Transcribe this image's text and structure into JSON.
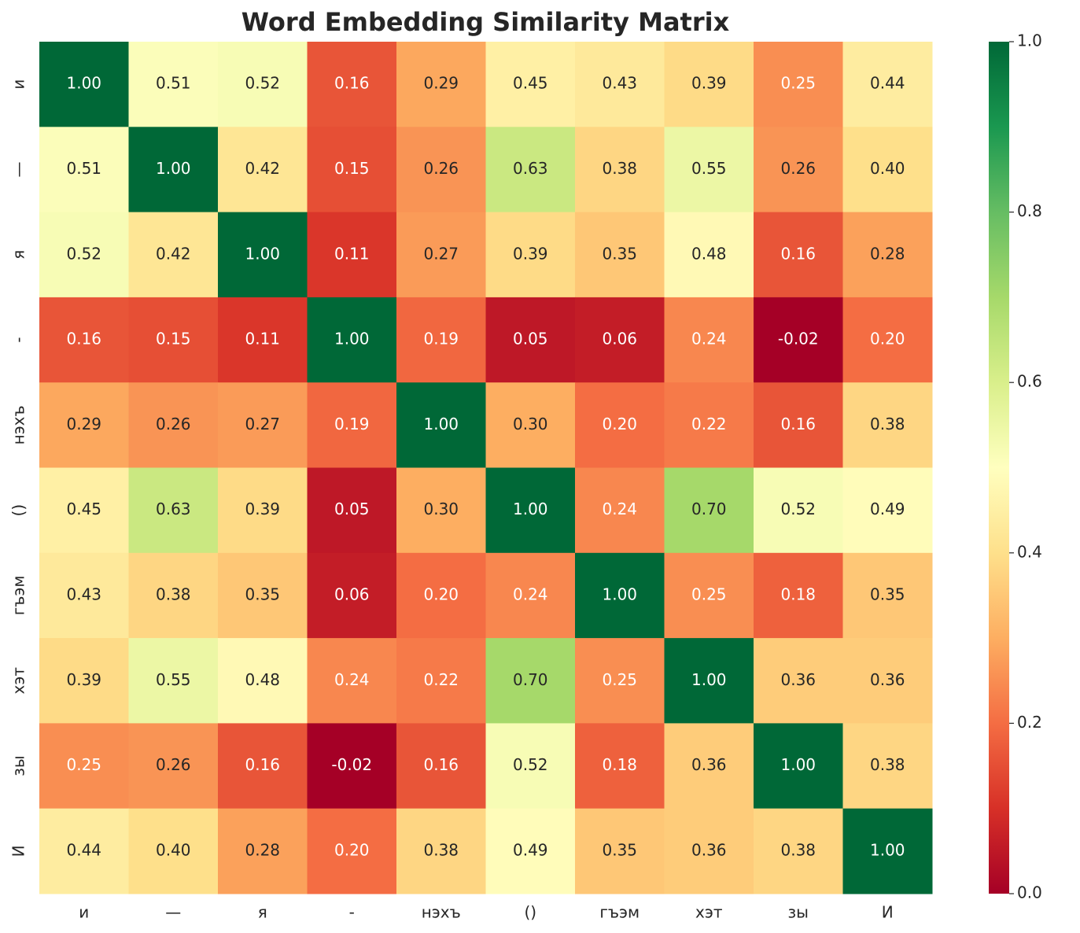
{
  "chart_data": {
    "type": "heatmap",
    "title": "Word Embedding Similarity Matrix",
    "x_categories": [
      "и",
      "—",
      "я",
      "-",
      "нэхъ",
      "()",
      "гъэм",
      "хэт",
      "зы",
      "И"
    ],
    "y_categories": [
      "и",
      "—",
      "я",
      "-",
      "нэхъ",
      "()",
      "гъэм",
      "хэт",
      "зы",
      "И"
    ],
    "values": [
      [
        1,
        0.51,
        0.52,
        0.16,
        0.29,
        0.45,
        0.43,
        0.39,
        0.25,
        0.44
      ],
      [
        0.51,
        1,
        0.42,
        0.15,
        0.26,
        0.63,
        0.38,
        0.55,
        0.26,
        0.4
      ],
      [
        0.52,
        0.42,
        1,
        0.11,
        0.27,
        0.39,
        0.35,
        0.48,
        0.16,
        0.28
      ],
      [
        0.16,
        0.15,
        0.11,
        1,
        0.19,
        0.05,
        0.06,
        0.24,
        -0.02,
        0.2
      ],
      [
        0.29,
        0.26,
        0.27,
        0.19,
        1,
        0.3,
        0.2,
        0.22,
        0.16,
        0.38
      ],
      [
        0.45,
        0.63,
        0.39,
        0.05,
        0.3,
        1,
        0.24,
        0.7,
        0.52,
        0.49
      ],
      [
        0.43,
        0.38,
        0.35,
        0.06,
        0.2,
        0.24,
        1,
        0.25,
        0.18,
        0.35
      ],
      [
        0.39,
        0.55,
        0.48,
        0.24,
        0.22,
        0.7,
        0.25,
        1,
        0.36,
        0.36
      ],
      [
        0.25,
        0.26,
        0.16,
        -0.02,
        0.16,
        0.52,
        0.18,
        0.36,
        1,
        0.38
      ],
      [
        0.44,
        0.4,
        0.28,
        0.2,
        0.38,
        0.49,
        0.35,
        0.36,
        0.38,
        1
      ]
    ],
    "value_labels": [
      [
        "1.00",
        "0.51",
        "0.52",
        "0.16",
        "0.29",
        "0.45",
        "0.43",
        "0.39",
        "0.25",
        "0.44"
      ],
      [
        "0.51",
        "1.00",
        "0.42",
        "0.15",
        "0.26",
        "0.63",
        "0.38",
        "0.55",
        "0.26",
        "0.40"
      ],
      [
        "0.52",
        "0.42",
        "1.00",
        "0.11",
        "0.27",
        "0.39",
        "0.35",
        "0.48",
        "0.16",
        "0.28"
      ],
      [
        "0.16",
        "0.15",
        "0.11",
        "1.00",
        "0.19",
        "0.05",
        "0.06",
        "0.24",
        "-0.02",
        "0.20"
      ],
      [
        "0.29",
        "0.26",
        "0.27",
        "0.19",
        "1.00",
        "0.30",
        "0.20",
        "0.22",
        "0.16",
        "0.38"
      ],
      [
        "0.45",
        "0.63",
        "0.39",
        "0.05",
        "0.30",
        "1.00",
        "0.24",
        "0.70",
        "0.52",
        "0.49"
      ],
      [
        "0.43",
        "0.38",
        "0.35",
        "0.06",
        "0.20",
        "0.24",
        "1.00",
        "0.25",
        "0.18",
        "0.35"
      ],
      [
        "0.39",
        "0.55",
        "0.48",
        "0.24",
        "0.22",
        "0.70",
        "0.25",
        "1.00",
        "0.36",
        "0.36"
      ],
      [
        "0.25",
        "0.26",
        "0.16",
        "-0.02",
        "0.16",
        "0.52",
        "0.18",
        "0.36",
        "1.00",
        "0.38"
      ],
      [
        "0.44",
        "0.40",
        "0.28",
        "0.20",
        "0.38",
        "0.49",
        "0.35",
        "0.36",
        "0.38",
        "1.00"
      ]
    ],
    "clim": [
      0,
      1
    ],
    "cticks": [
      {
        "value": 0,
        "label": "0.0"
      },
      0.2,
      0.4,
      0.6,
      0.8,
      {
        "value": 1,
        "label": "1.0"
      }
    ],
    "colormap": [
      "#a50026",
      "#d73027",
      "#f46d43",
      "#fdae61",
      "#fee08b",
      "#ffffbf",
      "#d9ef8b",
      "#a6d96a",
      "#66bd63",
      "#1a9850",
      "#006837"
    ]
  }
}
